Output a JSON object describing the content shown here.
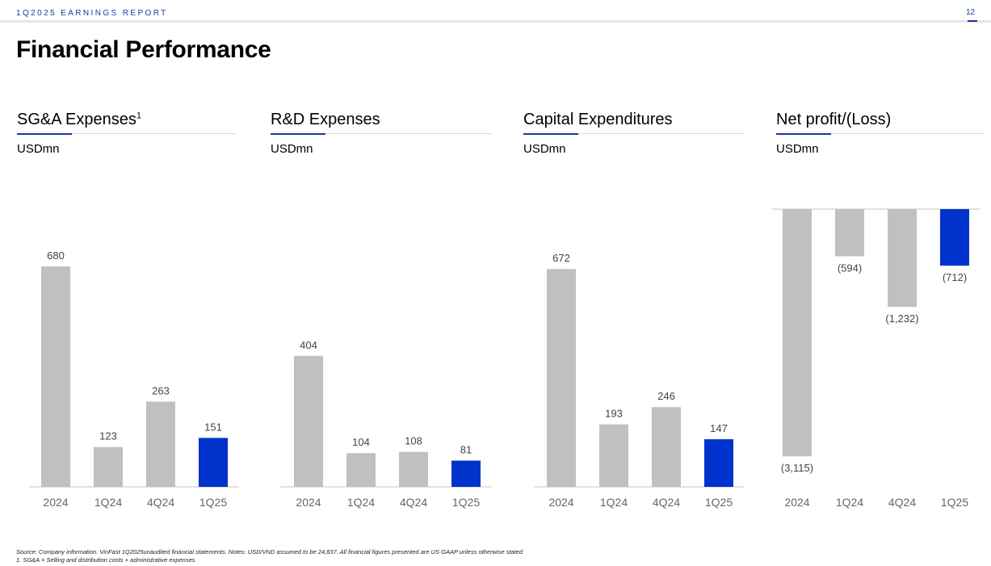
{
  "header": {
    "report_label": "1Q2025 EARNINGS REPORT",
    "page_number": "12"
  },
  "page_title": "Financial Performance",
  "chart_data": [
    {
      "type": "bar",
      "title": "SG&A Expenses",
      "title_superscript": "1",
      "unit": "USDmn",
      "categories": [
        "2024",
        "1Q24",
        "4Q24",
        "1Q25"
      ],
      "values": [
        680,
        123,
        263,
        151
      ],
      "labels": [
        "680",
        "123",
        "263",
        "151"
      ],
      "highlight_index": 3,
      "ylim": [
        0,
        680
      ]
    },
    {
      "type": "bar",
      "title": "R&D Expenses",
      "unit": "USDmn",
      "categories": [
        "2024",
        "1Q24",
        "4Q24",
        "1Q25"
      ],
      "values": [
        404,
        104,
        108,
        81
      ],
      "labels": [
        "404",
        "104",
        "108",
        "81"
      ],
      "highlight_index": 3,
      "ylim": [
        0,
        680
      ]
    },
    {
      "type": "bar",
      "title": "Capital Expenditures",
      "unit": "USDmn",
      "categories": [
        "2024",
        "1Q24",
        "4Q24",
        "1Q25"
      ],
      "values": [
        672,
        193,
        246,
        147
      ],
      "labels": [
        "672",
        "193",
        "246",
        "147"
      ],
      "highlight_index": 3,
      "ylim": [
        0,
        680
      ]
    },
    {
      "type": "bar",
      "title": "Net profit/(Loss)",
      "unit": "USDmn",
      "categories": [
        "2024",
        "1Q24",
        "4Q24",
        "1Q25"
      ],
      "values": [
        -3115,
        -594,
        -1232,
        -712
      ],
      "labels": [
        "(3,115)",
        "(594)",
        "(1,232)",
        "(712)"
      ],
      "highlight_index": 3,
      "ylim": [
        -3115,
        0
      ]
    }
  ],
  "colors": {
    "bar": "#c0c0c0",
    "highlight": "#0033cc",
    "accent": "#1a3a9a",
    "axis": "#d9d9d9",
    "label": "#444444",
    "tick": "#666666"
  },
  "footnotes": [
    "Source: Company information. VinFast 1Q2025unaudited financial statements. Notes: USD/VND assumed to be 24,837. All financial figures presented are US GAAP unless otherwise stated",
    "1. SG&A = Selling and distribution costs + administrative expenses"
  ]
}
